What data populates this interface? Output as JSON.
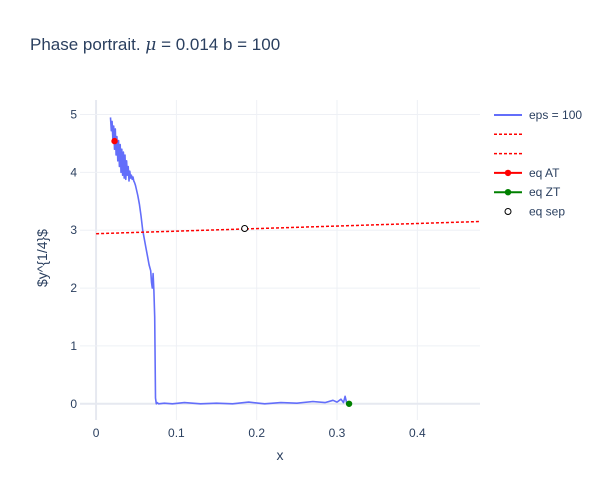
{
  "chart_data": {
    "type": "scatter",
    "title_main": "Phase portrait. ",
    "title_mu": "μ",
    "title_rest": " = 0.014 b = 100",
    "xlabel": "x",
    "ylabel": "$y^{1/4}$",
    "xlim": [
      -0.02,
      0.478
    ],
    "ylim": [
      -0.28,
      5.25
    ],
    "xticks": [
      0,
      0.1,
      0.2,
      0.3,
      0.4
    ],
    "xtick_labels": [
      "0",
      "0.1",
      "0.2",
      "0.3",
      "0.4"
    ],
    "yticks": [
      0,
      1,
      2,
      3,
      4,
      5
    ],
    "ytick_labels": [
      "0",
      "1",
      "2",
      "3",
      "4",
      "5"
    ],
    "grid": true,
    "legend_position": "top-right, outside plot",
    "series": [
      {
        "name": "eps = 100",
        "kind": "line",
        "color": "#636efa",
        "x": [
          0.018,
          0.019,
          0.02,
          0.021,
          0.022,
          0.023,
          0.024,
          0.025,
          0.026,
          0.027,
          0.028,
          0.029,
          0.03,
          0.031,
          0.032,
          0.033,
          0.034,
          0.035,
          0.036,
          0.037,
          0.038,
          0.039,
          0.04,
          0.041,
          0.042,
          0.043,
          0.044,
          0.045,
          0.046,
          0.047,
          0.048,
          0.049,
          0.05,
          0.052,
          0.054,
          0.056,
          0.058,
          0.06,
          0.062,
          0.064,
          0.066,
          0.068,
          0.069,
          0.07,
          0.071,
          0.072,
          0.073,
          0.074,
          0.075,
          0.076,
          0.078,
          0.085,
          0.095,
          0.11,
          0.13,
          0.15,
          0.17,
          0.19,
          0.21,
          0.23,
          0.25,
          0.27,
          0.285,
          0.295,
          0.3,
          0.305,
          0.308,
          0.31,
          0.312
        ],
        "y": [
          4.95,
          4.72,
          4.88,
          4.55,
          4.8,
          4.4,
          4.75,
          4.3,
          4.62,
          4.2,
          4.55,
          4.1,
          4.48,
          4.0,
          4.4,
          3.95,
          4.35,
          3.9,
          4.3,
          3.88,
          4.2,
          3.95,
          4.1,
          3.85,
          4.02,
          3.9,
          3.95,
          3.88,
          3.92,
          3.85,
          3.82,
          3.78,
          3.72,
          3.6,
          3.45,
          3.25,
          3.0,
          2.85,
          2.7,
          2.55,
          2.4,
          2.3,
          2.1,
          2.0,
          2.25,
          1.95,
          1.5,
          0.1,
          0.0,
          0.02,
          0.0,
          0.01,
          0.0,
          0.02,
          0.0,
          0.01,
          0.0,
          0.03,
          0.0,
          0.02,
          0.01,
          0.04,
          0.02,
          0.06,
          0.03,
          0.08,
          0.02,
          0.13,
          0.01
        ]
      },
      {
        "name": "",
        "kind": "dotted",
        "color": "#ff0000",
        "x": [
          0.0,
          0.478
        ],
        "y": [
          2.94,
          3.15
        ]
      },
      {
        "name": "",
        "kind": "dotted",
        "color": "#ff0000",
        "x": [],
        "y": []
      },
      {
        "name": "eq AT",
        "kind": "marker",
        "color": "#ff0000",
        "x": [
          0.023
        ],
        "y": [
          4.54
        ]
      },
      {
        "name": "eq ZT",
        "kind": "marker",
        "color": "#008000",
        "x": [
          0.315
        ],
        "y": [
          0.0
        ]
      },
      {
        "name": "eq sep",
        "kind": "open-marker",
        "color": "#000000",
        "x": [
          0.185
        ],
        "y": [
          3.03
        ]
      }
    ]
  }
}
